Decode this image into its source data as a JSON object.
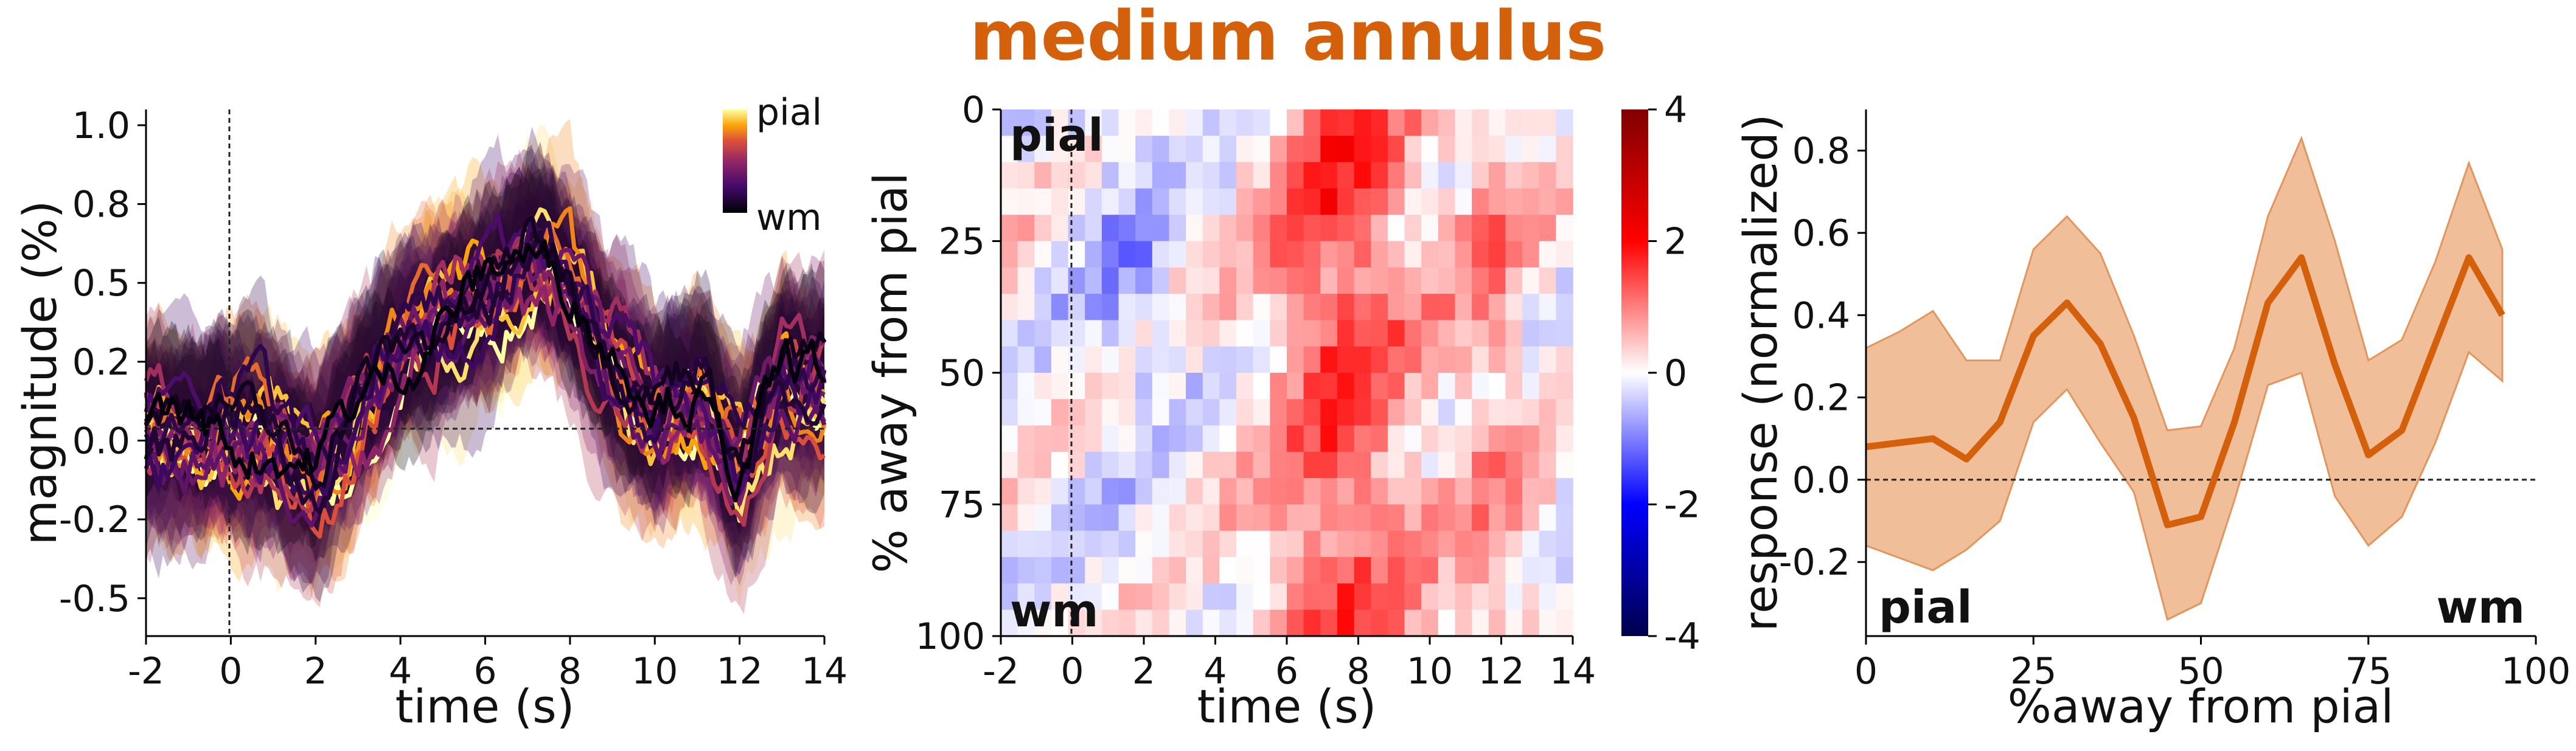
{
  "title": "medium annulus",
  "title_color": "#d4600c",
  "chart_data": [
    {
      "type": "line",
      "ylabel": "magnitude (%)",
      "xlabel": "time (s)",
      "xlim": [
        -2,
        14
      ],
      "ylim": [
        -0.62,
        1.05
      ],
      "x_ticks": [
        "-2",
        "0",
        "2",
        "4",
        "6",
        "8",
        "10",
        "12",
        "14"
      ],
      "y_ticks": [
        "-0.5",
        "-0.2",
        "0.0",
        "0.2",
        "0.5",
        "0.8",
        "1.0"
      ],
      "y_tick_values": [
        -0.5,
        -0.25,
        0.0,
        0.25,
        0.5,
        0.75,
        1.0
      ],
      "colormap": "inferno",
      "colorbar_top_label": "pial",
      "colorbar_bottom_label": "wm",
      "reference_lines": {
        "x": 0,
        "y": 0
      },
      "x": [
        -2,
        -1,
        0,
        1,
        2,
        3,
        4,
        5,
        6,
        7,
        8,
        9,
        10,
        11,
        12,
        13,
        14
      ],
      "mean_profile": [
        0.05,
        0.0,
        -0.02,
        0.0,
        -0.1,
        0.08,
        0.25,
        0.4,
        0.45,
        0.55,
        0.5,
        0.25,
        0.05,
        0.1,
        -0.1,
        0.2,
        0.15
      ],
      "shade_halfwidth": 0.22,
      "series_count": 20
    },
    {
      "type": "heatmap",
      "ylabel": "% away from pial",
      "xlabel": "time (s)",
      "xlim": [
        -2,
        14
      ],
      "ylim": [
        100,
        0
      ],
      "x_ticks": [
        "-2",
        "0",
        "2",
        "4",
        "6",
        "8",
        "10",
        "12",
        "14"
      ],
      "y_ticks": [
        "0",
        "25",
        "50",
        "75",
        "100"
      ],
      "colormap": "seismic",
      "clim": [
        -4,
        4
      ],
      "colorbar_ticks": [
        "4",
        "2",
        "0",
        "-2",
        "-4"
      ],
      "annotations": [
        "pial",
        "wm"
      ],
      "reference_lines": {
        "x": 0
      },
      "rows": 20,
      "columns": 34
    },
    {
      "type": "line",
      "ylabel": "response (normalized)",
      "xlabel": "%away from pial",
      "xlim": [
        0,
        100
      ],
      "ylim": [
        -0.38,
        0.9
      ],
      "x_ticks": [
        "0",
        "25",
        "50",
        "75",
        "100"
      ],
      "y_ticks": [
        "-0.2",
        "0.0",
        "0.2",
        "0.4",
        "0.6",
        "0.8"
      ],
      "annotations": [
        "pial",
        "wm"
      ],
      "reference_lines": {
        "y": 0
      },
      "color": "#d4600c",
      "x": [
        0,
        5,
        10,
        15,
        20,
        25,
        30,
        35,
        40,
        45,
        50,
        55,
        60,
        65,
        70,
        75,
        80,
        85,
        90,
        95
      ],
      "y": [
        0.08,
        0.09,
        0.1,
        0.05,
        0.14,
        0.35,
        0.43,
        0.33,
        0.15,
        -0.11,
        -0.09,
        0.14,
        0.43,
        0.54,
        0.28,
        0.06,
        0.12,
        0.33,
        0.54,
        0.4
      ],
      "lower": [
        -0.16,
        -0.19,
        -0.22,
        -0.17,
        -0.1,
        0.14,
        0.22,
        0.09,
        -0.03,
        -0.34,
        -0.3,
        -0.05,
        0.23,
        0.26,
        -0.04,
        -0.16,
        -0.09,
        0.09,
        0.31,
        0.24
      ],
      "upper": [
        0.32,
        0.36,
        0.41,
        0.29,
        0.29,
        0.56,
        0.64,
        0.55,
        0.35,
        0.12,
        0.13,
        0.32,
        0.64,
        0.83,
        0.58,
        0.29,
        0.34,
        0.53,
        0.77,
        0.56
      ]
    }
  ]
}
